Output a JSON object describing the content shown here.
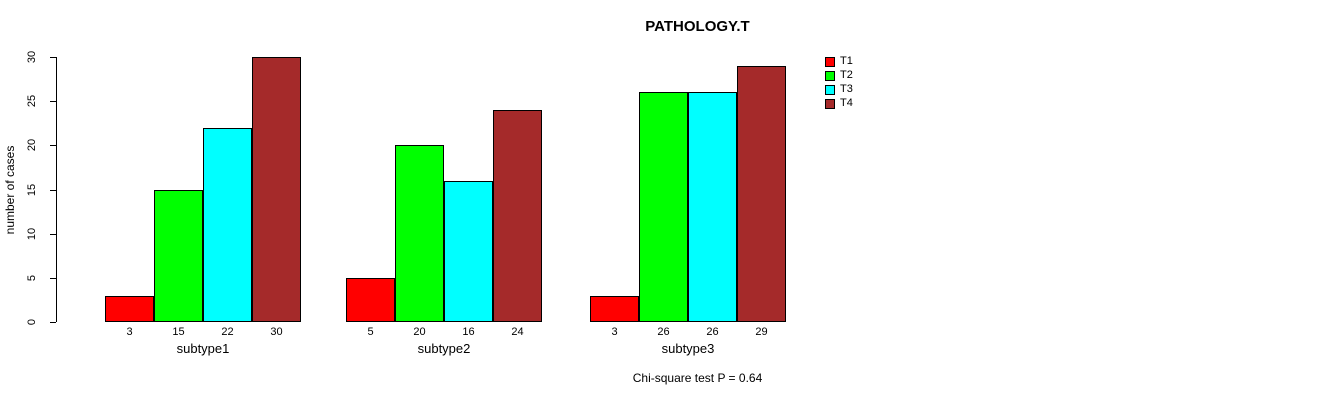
{
  "chart_data": {
    "type": "bar",
    "title": "PATHOLOGY.T",
    "ylabel": "number of cases",
    "ylim": [
      0,
      30
    ],
    "yticks": [
      0,
      5,
      10,
      15,
      20,
      25,
      30
    ],
    "categories": [
      "subtype1",
      "subtype2",
      "subtype3"
    ],
    "series": [
      {
        "name": "T1",
        "color": "#FF0000",
        "values": [
          3,
          5,
          3
        ]
      },
      {
        "name": "T2",
        "color": "#00FF00",
        "values": [
          15,
          20,
          26
        ]
      },
      {
        "name": "T3",
        "color": "#00FFFF",
        "values": [
          22,
          16,
          26
        ]
      },
      {
        "name": "T4",
        "color": "#A52A2A",
        "values": [
          30,
          24,
          29
        ]
      }
    ],
    "bar_value_labels_shown": true,
    "legend_position": "top-right",
    "grid": false,
    "annotation": "Chi-square test P = 0.64"
  }
}
